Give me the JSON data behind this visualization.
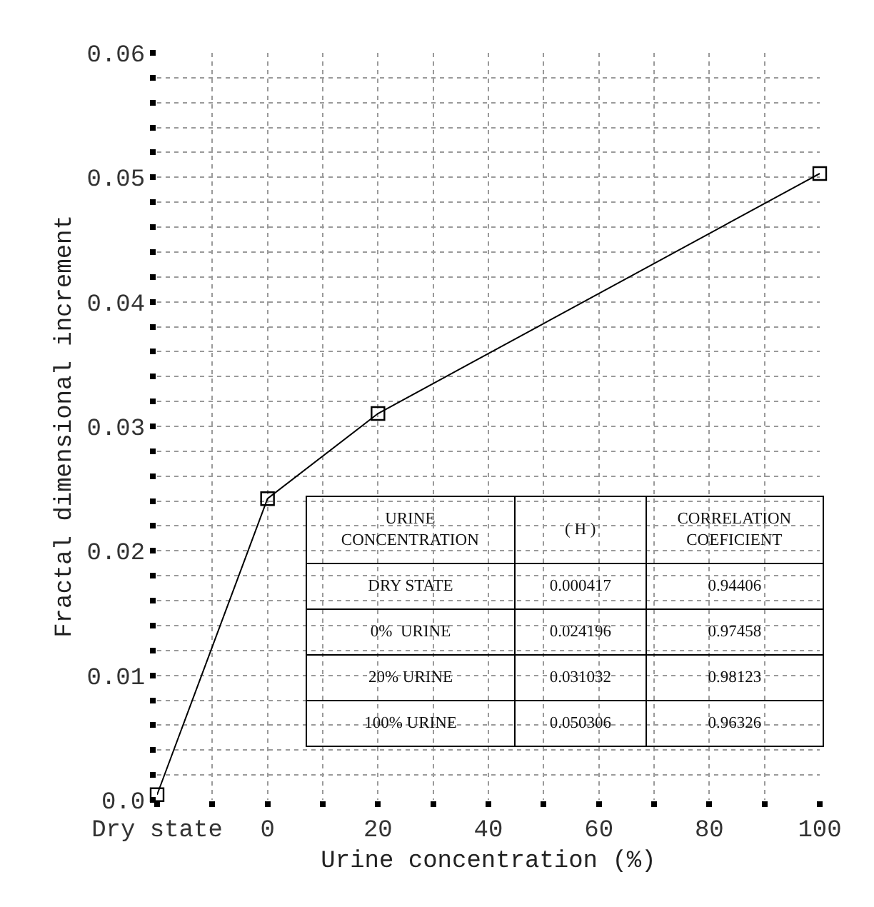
{
  "chart_data": {
    "type": "line",
    "xlabel": "Urine concentration (%)",
    "ylabel": "Fractal dimensional increment",
    "x": [
      -20,
      0,
      20,
      100
    ],
    "series": [
      {
        "color": "#000000",
        "values": [
          0.000417,
          0.024196,
          0.031032,
          0.050306
        ]
      }
    ],
    "xlim": [
      -20,
      100
    ],
    "xticks": [
      {
        "value": -20,
        "label": "Dry state"
      },
      {
        "value": -10,
        "label": null
      },
      0,
      {
        "value": 10,
        "label": null
      },
      20,
      {
        "value": 30,
        "label": null
      },
      40,
      {
        "value": 50,
        "label": null
      },
      60,
      {
        "value": 70,
        "label": null
      },
      80,
      {
        "value": 90,
        "label": null
      },
      100
    ],
    "ylim": [
      0,
      0.06
    ],
    "yticks": [
      {
        "value": 0,
        "label": "0.0"
      },
      {
        "value": 0.002,
        "label": null
      },
      {
        "value": 0.004,
        "label": null
      },
      {
        "value": 0.006,
        "label": null
      },
      {
        "value": 0.008,
        "label": null
      },
      0.01,
      {
        "value": 0.012,
        "label": null
      },
      {
        "value": 0.014,
        "label": null
      },
      {
        "value": 0.016,
        "label": null
      },
      {
        "value": 0.018,
        "label": null
      },
      0.02,
      {
        "value": 0.022,
        "label": null
      },
      {
        "value": 0.024,
        "label": null
      },
      {
        "value": 0.026,
        "label": null
      },
      {
        "value": 0.028,
        "label": null
      },
      0.03,
      {
        "value": 0.032,
        "label": null
      },
      {
        "value": 0.034,
        "label": null
      },
      {
        "value": 0.036,
        "label": null
      },
      {
        "value": 0.038,
        "label": null
      },
      0.04,
      {
        "value": 0.042,
        "label": null
      },
      {
        "value": 0.044,
        "label": null
      },
      {
        "value": 0.046,
        "label": null
      },
      {
        "value": 0.048,
        "label": null
      },
      0.05,
      {
        "value": 0.052,
        "label": null
      },
      {
        "value": 0.054,
        "label": null
      },
      {
        "value": 0.056,
        "label": null
      },
      {
        "value": 0.058,
        "label": null
      },
      0.06
    ],
    "grid": true,
    "marker": "square",
    "line_style": "solid",
    "annotations": [
      "URINE\nCONCENTRATION",
      "( H )",
      "CORRELATION\nCOEFICIENT",
      "DRY STATE",
      "0.000417",
      "0.94406",
      "0%  URINE",
      "0.024196",
      "0.97458",
      "20% URINE",
      "0.031032",
      "0.98123",
      "100% URINE",
      "0.050306",
      "0.96326"
    ]
  }
}
